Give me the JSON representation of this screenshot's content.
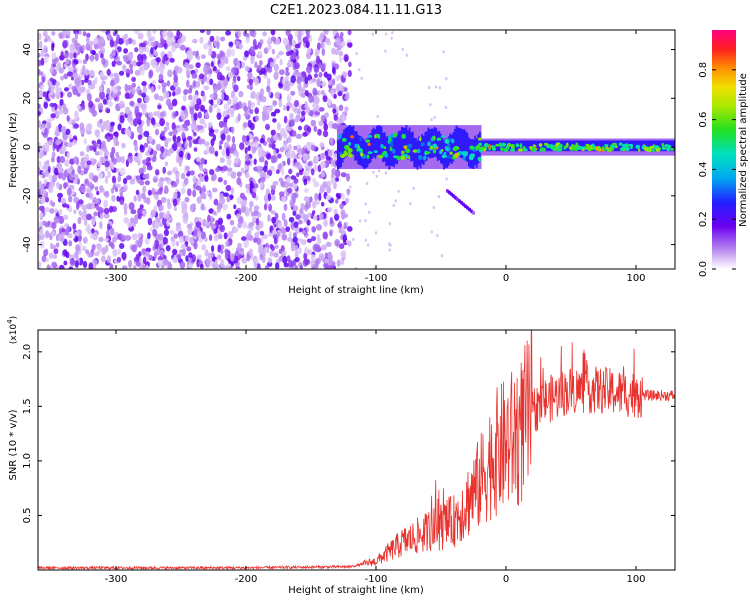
{
  "title": "C2E1.2023.084.11.11.G13",
  "chart_data": [
    {
      "type": "heatmap",
      "xlabel": "Height of straight line (km)",
      "ylabel": "Frequency (Hz)",
      "xlim": [
        -360,
        130
      ],
      "ylim": [
        -50,
        48
      ],
      "xticks": [
        -300,
        -200,
        -100,
        0,
        100
      ],
      "yticks": [
        -40,
        -20,
        0,
        20,
        40
      ],
      "colorbar": {
        "label": "Normalized spectral amplitude",
        "ticks": [
          "0.0",
          "0.2",
          "0.4",
          "0.6",
          "0.8"
        ],
        "range": [
          0,
          0.96
        ]
      },
      "regions": [
        {
          "name": "noise",
          "x": [
            -360,
            -120
          ],
          "y": [
            -50,
            48
          ],
          "amplitude": 0.15
        },
        {
          "name": "signal",
          "x": [
            -130,
            130
          ],
          "y_center": 0,
          "amplitude_range": [
            0.3,
            0.85
          ]
        },
        {
          "name": "tail",
          "x": [
            -45,
            -25
          ],
          "y": [
            -27,
            -18
          ],
          "amplitude": 0.2
        }
      ]
    },
    {
      "type": "line",
      "xlabel": "Height of straight line (km)",
      "ylabel": "SNR (10 * v/v)",
      "y_multiplier": "(x10",
      "y_multiplier_exp": "4",
      "y_multiplier_close": ")",
      "xlim": [
        -360,
        130
      ],
      "ylim": [
        0,
        2.2
      ],
      "xticks": [
        -300,
        -200,
        -100,
        0,
        100
      ],
      "yticks": [
        "0.5",
        "1.0",
        "1.5",
        "2.0"
      ],
      "color": "#e8322e",
      "series": [
        {
          "x": [
            -360,
            -300,
            -200,
            -120,
            -100,
            -80,
            -60,
            -40,
            -20,
            -10,
            0,
            10,
            20,
            30,
            50,
            70,
            90,
            110,
            130
          ],
          "y": [
            0.02,
            0.02,
            0.02,
            0.03,
            0.08,
            0.25,
            0.35,
            0.45,
            0.8,
            1.05,
            1.15,
            1.25,
            1.45,
            1.55,
            1.65,
            1.65,
            1.62,
            1.6,
            1.6
          ]
        }
      ]
    }
  ]
}
